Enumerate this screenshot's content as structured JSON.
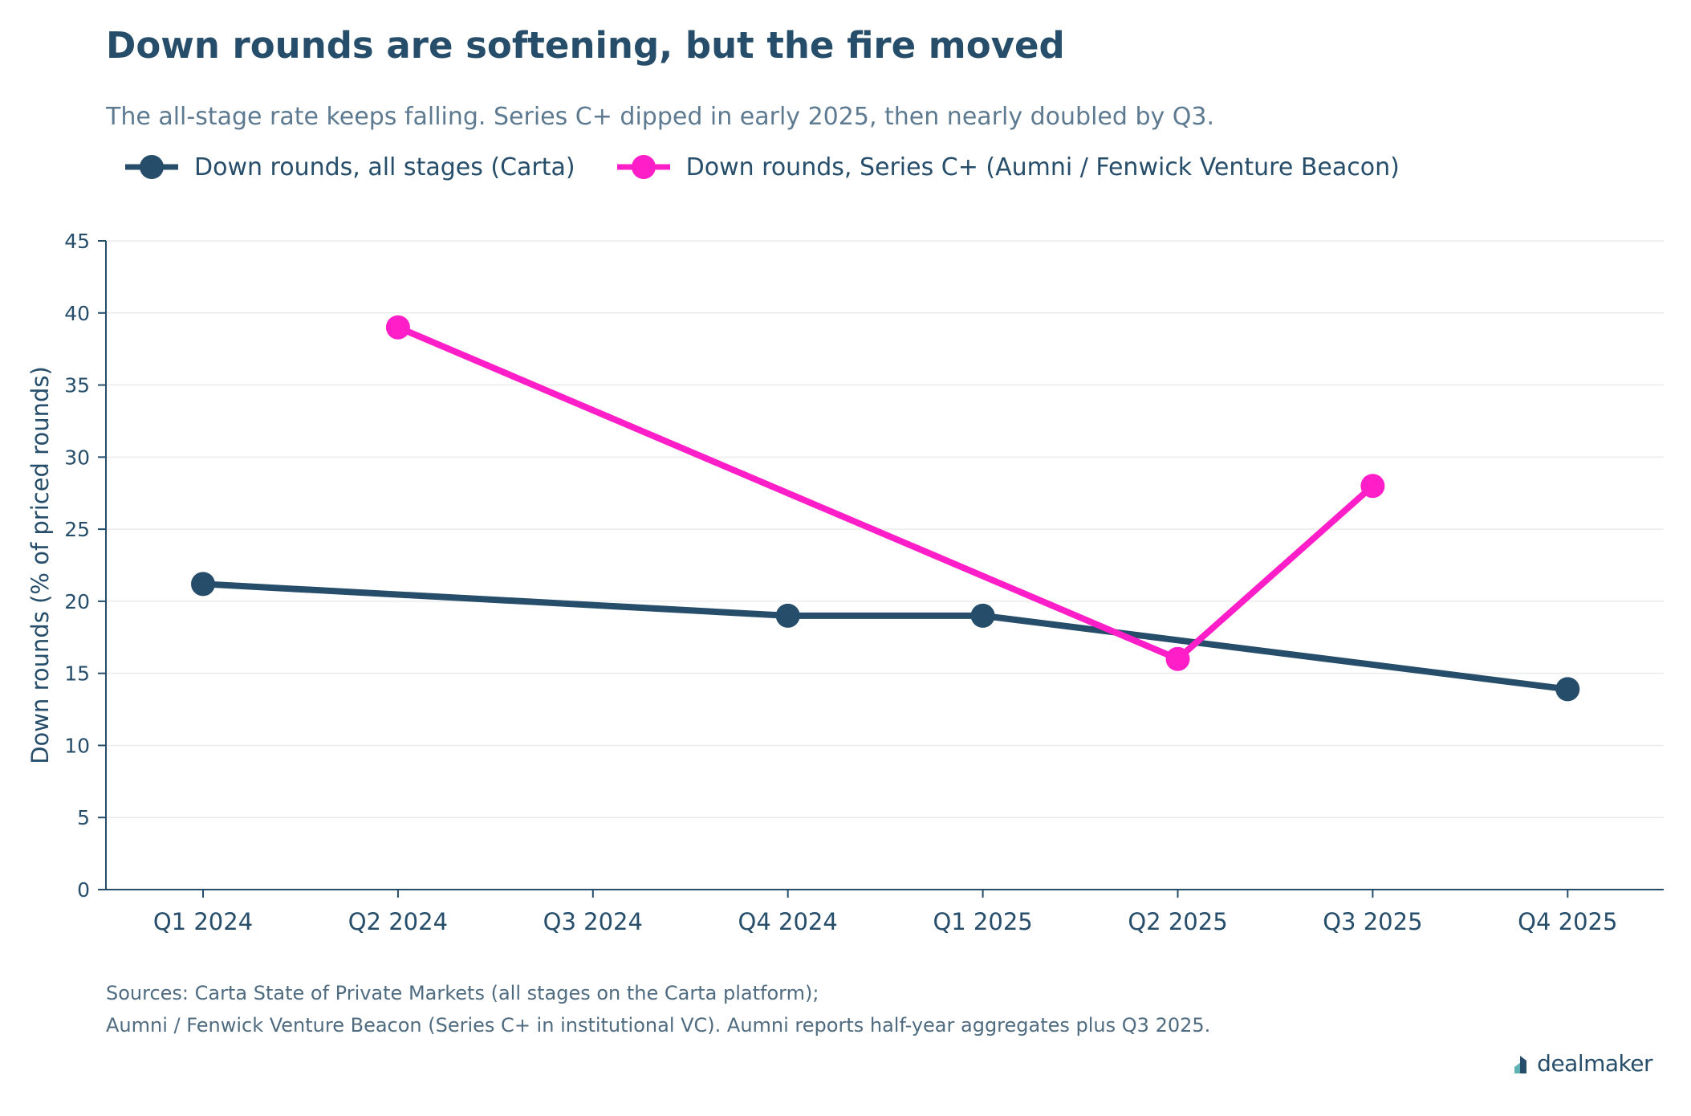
{
  "title": "Down rounds are softening, but the fire moved",
  "subtitle": "The all-stage rate keeps falling. Series C+ dipped in early 2025, then nearly doubled by Q3.",
  "footnotes": [
    "Sources: Carta State of Private Markets (all stages on the Carta platform);",
    "Aumni / Fenwick Venture Beacon (Series C+ in institutional VC). Aumni reports half-year aggregates plus Q3 2025."
  ],
  "logo_text": "dealmaker",
  "chart_data": {
    "type": "line",
    "categories": [
      "Q1 2024",
      "Q2 2024",
      "Q3 2024",
      "Q4 2024",
      "Q1 2025",
      "Q2 2025",
      "Q3 2025",
      "Q4 2025"
    ],
    "ylabel": "Down rounds (% of priced rounds)",
    "xlabel": "",
    "ylim": [
      0,
      45
    ],
    "yticks": [
      0,
      5,
      10,
      15,
      20,
      25,
      30,
      35,
      40,
      45
    ],
    "grid": "horizontal",
    "legend_position": "top-left",
    "series": [
      {
        "name": "Down rounds, all stages (Carta)",
        "color": "#264d6a",
        "values": [
          21.2,
          null,
          null,
          19.0,
          19.0,
          null,
          null,
          13.9
        ]
      },
      {
        "name": "Down rounds, Series C+ (Aumni / Fenwick Venture Beacon)",
        "color": "#ff1ec8",
        "values": [
          null,
          39.0,
          null,
          null,
          null,
          16.0,
          28.0,
          null
        ]
      }
    ]
  }
}
